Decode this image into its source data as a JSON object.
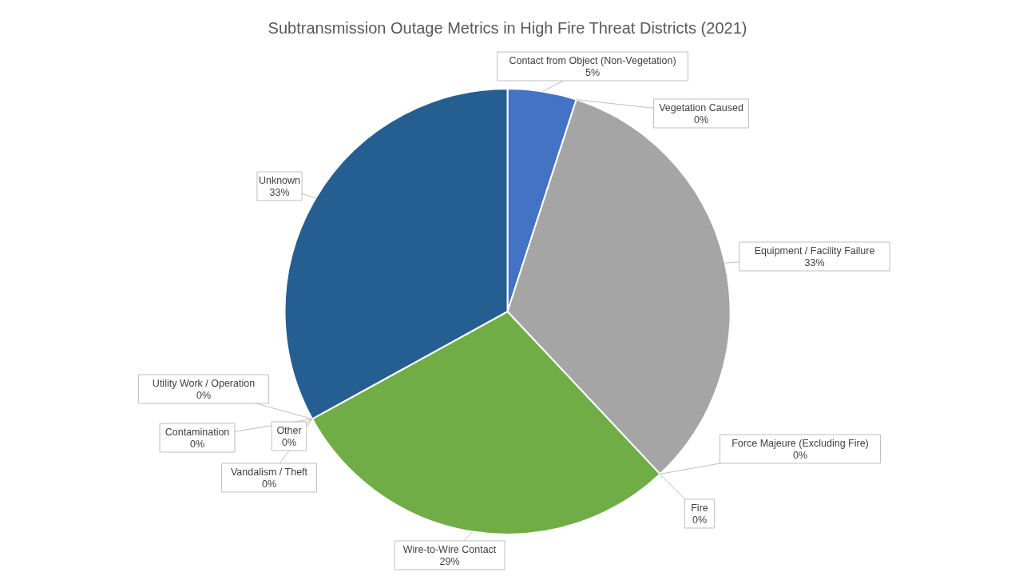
{
  "chart_data": {
    "type": "pie",
    "title": "Subtransmission Outage Metrics in High Fire Threat Districts (2021)",
    "categories": [
      "Contact from Object (Non-Vegetation)",
      "Vegetation Caused",
      "Equipment / Facility Failure",
      "Force Majeure (Excluding Fire)",
      "Fire",
      "Wire-to-Wire Contact",
      "Vandalism / Theft",
      "Other",
      "Contamination",
      "Utility Work / Operation",
      "Unknown"
    ],
    "values": [
      5,
      0,
      33,
      0,
      0,
      29,
      0,
      0,
      0,
      0,
      33
    ],
    "colors": [
      "#4472c4",
      "#ed7d31",
      "#a5a5a5",
      "#ffc000",
      "#5b9bd5",
      "#70ad47",
      "#264478",
      "#9e480e",
      "#636363",
      "#997300",
      "#255e91"
    ],
    "value_labels": [
      "5%",
      "0%",
      "33%",
      "0%",
      "0%",
      "29%",
      "0%",
      "0%",
      "0%",
      "0%",
      "33%"
    ]
  }
}
